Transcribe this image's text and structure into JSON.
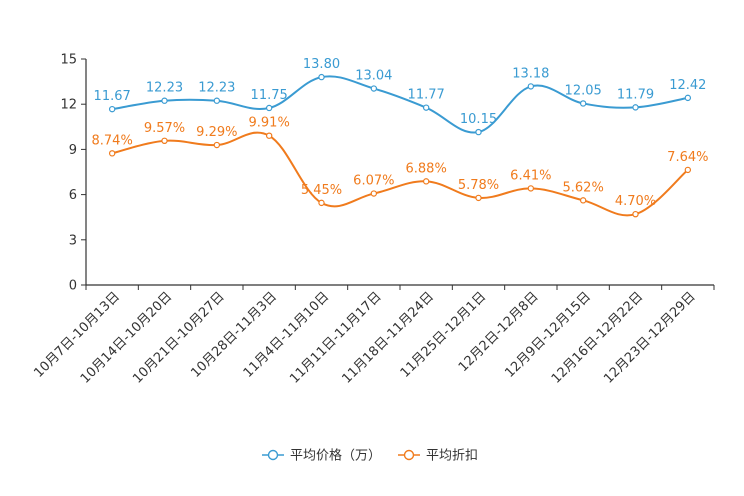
{
  "chart_data": {
    "type": "line",
    "title": "",
    "xlabel": "",
    "ylabel": "",
    "ylim": [
      0,
      15
    ],
    "yticks": [
      0,
      3,
      6,
      9,
      12,
      15
    ],
    "categories": [
      "10月7日-10月13日",
      "10月14日-10月20日",
      "10月21日-10月27日",
      "10月28日-11月3日",
      "11月4日-11月10日",
      "11月11日-11月17日",
      "11月18日-11月24日",
      "11月25日-12月1日",
      "12月2日-12月8日",
      "12月9日-12月15日",
      "12月16日-12月22日",
      "12月23日-12月29日"
    ],
    "series": [
      {
        "name": "平均价格（万）",
        "color": "#3A9BD2",
        "values": [
          11.67,
          12.23,
          12.23,
          11.75,
          13.8,
          13.04,
          11.77,
          10.15,
          13.18,
          12.05,
          11.79,
          12.42
        ],
        "labels": [
          "11.67",
          "12.23",
          "12.23",
          "11.75",
          "13.80",
          "13.04",
          "11.77",
          "10.15",
          "13.18",
          "12.05",
          "11.79",
          "12.42"
        ]
      },
      {
        "name": "平均折扣",
        "color": "#F07B1D",
        "values": [
          8.74,
          9.57,
          9.29,
          9.91,
          5.45,
          6.07,
          6.88,
          5.78,
          6.41,
          5.62,
          4.7,
          7.64
        ],
        "labels": [
          "8.74%",
          "9.57%",
          "9.29%",
          "9.91%",
          "5.45%",
          "6.07%",
          "6.88%",
          "5.78%",
          "6.41%",
          "5.62%",
          "4.70%",
          "7.64%"
        ]
      }
    ],
    "legend_position": "bottom-center"
  }
}
